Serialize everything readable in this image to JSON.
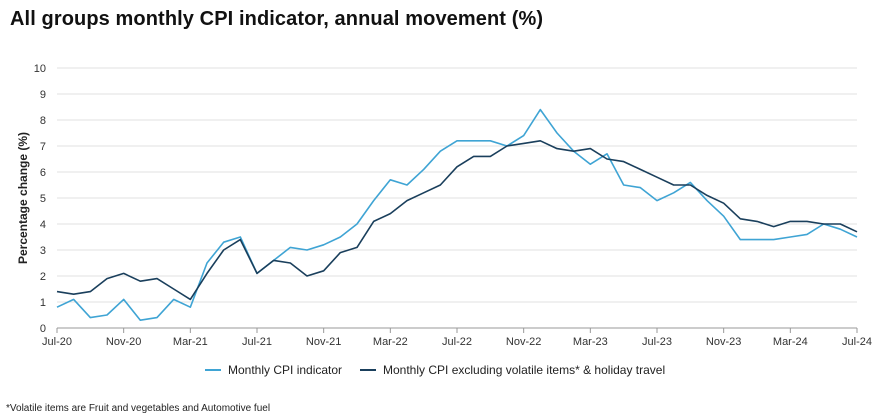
{
  "chart_data": {
    "type": "line",
    "title": "All groups monthly CPI indicator, annual movement (%)",
    "ylabel": "Percentage change (%)",
    "xlabel": "",
    "ylim": [
      0,
      10
    ],
    "yticks": [
      0,
      1,
      2,
      3,
      4,
      5,
      6,
      7,
      8,
      9,
      10
    ],
    "grid": true,
    "legend_position": "bottom",
    "x": [
      "Jul-20",
      "Aug-20",
      "Sep-20",
      "Oct-20",
      "Nov-20",
      "Dec-20",
      "Jan-21",
      "Feb-21",
      "Mar-21",
      "Apr-21",
      "May-21",
      "Jun-21",
      "Jul-21",
      "Aug-21",
      "Sep-21",
      "Oct-21",
      "Nov-21",
      "Dec-21",
      "Jan-22",
      "Feb-22",
      "Mar-22",
      "Apr-22",
      "May-22",
      "Jun-22",
      "Jul-22",
      "Aug-22",
      "Sep-22",
      "Oct-22",
      "Nov-22",
      "Dec-22",
      "Jan-23",
      "Feb-23",
      "Mar-23",
      "Apr-23",
      "May-23",
      "Jun-23",
      "Jul-23",
      "Aug-23",
      "Sep-23",
      "Oct-23",
      "Nov-23",
      "Dec-23",
      "Jan-24",
      "Feb-24",
      "Mar-24",
      "Apr-24",
      "May-24",
      "Jun-24",
      "Jul-24"
    ],
    "tick_labels": [
      "Jul-20",
      "Nov-20",
      "Mar-21",
      "Jul-21",
      "Nov-21",
      "Mar-22",
      "Jul-22",
      "Nov-22",
      "Mar-23",
      "Jul-23",
      "Nov-23",
      "Mar-24",
      "Jul-24"
    ],
    "series": [
      {
        "name": "Monthly CPI indicator",
        "color": "#3fa4d4",
        "values": [
          0.8,
          1.1,
          0.4,
          0.5,
          1.1,
          0.3,
          0.4,
          1.1,
          0.8,
          2.5,
          3.3,
          3.5,
          2.1,
          2.6,
          3.1,
          3.0,
          3.2,
          3.5,
          4.0,
          4.9,
          5.7,
          5.5,
          6.1,
          6.8,
          7.2,
          7.2,
          7.2,
          7.0,
          7.4,
          8.4,
          7.5,
          6.8,
          6.3,
          6.7,
          5.5,
          5.4,
          4.9,
          5.2,
          5.6,
          4.9,
          4.3,
          3.4,
          3.4,
          3.4,
          3.5,
          3.6,
          4.0,
          3.8,
          3.5
        ]
      },
      {
        "name": "Monthly CPI excluding volatile items* & holiday travel",
        "color": "#1a3f5c",
        "values": [
          1.4,
          1.3,
          1.4,
          1.9,
          2.1,
          1.8,
          1.9,
          1.5,
          1.1,
          2.1,
          3.0,
          3.4,
          2.1,
          2.6,
          2.5,
          2.0,
          2.2,
          2.9,
          3.1,
          4.1,
          4.4,
          4.9,
          5.2,
          5.5,
          6.2,
          6.6,
          6.6,
          7.0,
          7.1,
          7.2,
          6.9,
          6.8,
          6.9,
          6.5,
          6.4,
          6.1,
          5.8,
          5.5,
          5.5,
          5.1,
          4.8,
          4.2,
          4.1,
          3.9,
          4.1,
          4.1,
          4.0,
          4.0,
          3.7
        ]
      }
    ],
    "axis_color": "#999999",
    "grid_color": "#e2e2e2"
  },
  "footnote": "*Volatile items are Fruit and vegetables and Automotive fuel"
}
